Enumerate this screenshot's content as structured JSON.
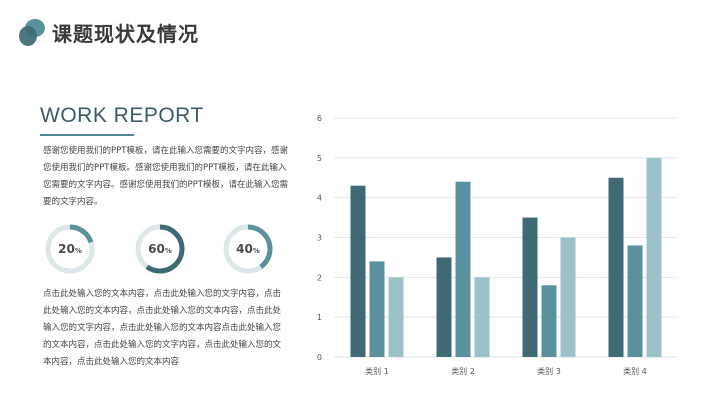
{
  "header": {
    "title": "课题现状及情况"
  },
  "report": {
    "title": "WORK REPORT",
    "paragraph1": "感谢您使用我们的PPT模板，请在此输入您需要的文字内容，感谢您使用我们的PPT模板。感谢您使用我们的PPT模板，请在此输入您需要的文字内容。感谢您使用我们的PPT模板，请在此输入您需要的文字内容。",
    "paragraph2": "点击此处输入您的文本内容，点击此处输入您的文字内容，点击此处输入您的文本内容，点击此处输入您的文本内容，点击此处输入您的文字内容，点击此处输入您的文本内容点击此处输入您的文本内容，点击此处输入您的文字内容，点击此处输入您的文本内容，点击此处输入您的文本内容"
  },
  "rings": [
    {
      "value": 20,
      "number": "20",
      "unit": "%",
      "color": "#5b919c"
    },
    {
      "value": 60,
      "number": "60",
      "unit": "%",
      "color": "#3f6a74"
    },
    {
      "value": 40,
      "number": "40",
      "unit": "%",
      "color": "#5b919c"
    }
  ],
  "colors": {
    "series1": "#3f6a74",
    "series2": "#5b919c",
    "series3": "#9bc2c9",
    "ring_track": "#dde6e8",
    "grid": "#dde9ec",
    "logo_dark": "#3f6a74",
    "logo_light": "#5b919c"
  },
  "chart_data": {
    "type": "bar",
    "categories": [
      "类别 1",
      "类别 2",
      "类别 3",
      "类别 4"
    ],
    "series": [
      {
        "values": [
          4.3,
          2.5,
          3.5,
          4.5
        ]
      },
      {
        "values": [
          2.4,
          4.4,
          1.8,
          2.8
        ]
      },
      {
        "values": [
          2.0,
          2.0,
          3.0,
          5.0
        ]
      }
    ],
    "ylim": [
      0,
      6
    ],
    "yticks": [
      "0",
      "1",
      "2",
      "3",
      "4",
      "5",
      "6"
    ],
    "grid": true,
    "legend": "none"
  }
}
